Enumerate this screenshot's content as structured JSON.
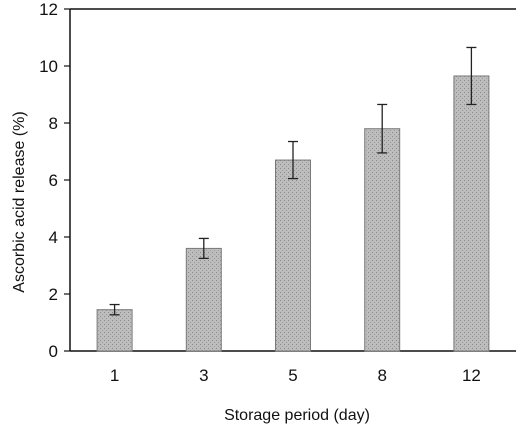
{
  "chart_data": {
    "type": "bar",
    "title": "",
    "xlabel": "Storage  period (day)",
    "ylabel": "Ascorbic acid release (%)",
    "categories": [
      "1",
      "3",
      "5",
      "8",
      "12"
    ],
    "values": [
      1.45,
      3.6,
      6.7,
      7.8,
      9.65
    ],
    "error": [
      0.18,
      0.35,
      0.65,
      0.85,
      1.0
    ],
    "ylim": [
      0,
      12
    ],
    "yticks": [
      0,
      2,
      4,
      6,
      8,
      10,
      12
    ],
    "grid": false,
    "bar_fill": "#bdbdbd",
    "bar_stroke": "#7a7a7a",
    "axis_color": "#111111"
  }
}
